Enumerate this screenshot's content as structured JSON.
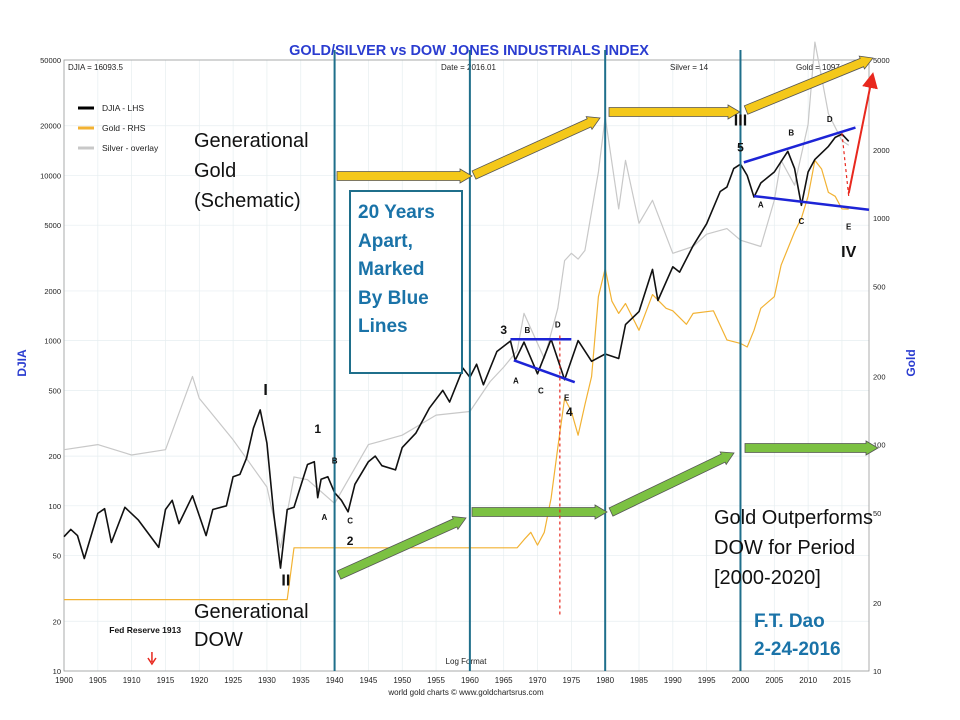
{
  "chart_data": {
    "type": "line",
    "title": "GOLD/SILVER vs DOW JONES INDUSTRIALS INDEX",
    "header_left": "DJIA = 16093.5",
    "header_date": "Date = 2016.01",
    "header_silver": "Silver = 14",
    "header_gold": "Gold = 1097",
    "ylabel_left": "DJIA",
    "ylabel_right": "Gold",
    "footer_center": "Log Format",
    "footer_credit": "world gold charts © www.goldchartsrus.com",
    "y_left_log": true,
    "ylim_left": [
      10,
      50000
    ],
    "ylim_right": [
      10,
      5000
    ],
    "xlim": [
      1900,
      2019
    ],
    "x_ticks": [
      "1900",
      "1905",
      "1910",
      "1915",
      "1920",
      "1925",
      "1930",
      "1935",
      "1940",
      "1945",
      "1950",
      "1955",
      "1960",
      "1965",
      "1970",
      "1975",
      "1980",
      "1985",
      "1990",
      "1995",
      "2000",
      "2005",
      "2010",
      "2015"
    ],
    "y_left_ticks": [
      "10",
      "20",
      "50",
      "100",
      "200",
      "500",
      "1000",
      "2000",
      "5000",
      "10000",
      "20000",
      "50000"
    ],
    "y_right_ticks": [
      "10",
      "20",
      "50",
      "100",
      "200",
      "500",
      "1000",
      "2000",
      "5000"
    ],
    "legend": [
      {
        "label": "DJIA - LHS",
        "color": "#000000"
      },
      {
        "label": "Gold - RHS",
        "color": "#f2b233"
      },
      {
        "label": "Silver - overlay",
        "color": "#c8c8c8"
      }
    ],
    "series": [
      {
        "name": "DJIA - LHS",
        "axis": "left",
        "color": "#111111",
        "points": [
          [
            1900,
            65
          ],
          [
            1901,
            72
          ],
          [
            1902,
            66
          ],
          [
            1903,
            48
          ],
          [
            1905,
            90
          ],
          [
            1906,
            96
          ],
          [
            1907,
            60
          ],
          [
            1909,
            98
          ],
          [
            1911,
            82
          ],
          [
            1914,
            56
          ],
          [
            1915,
            95
          ],
          [
            1916,
            108
          ],
          [
            1917,
            78
          ],
          [
            1919,
            115
          ],
          [
            1921,
            66
          ],
          [
            1922,
            95
          ],
          [
            1924,
            100
          ],
          [
            1925,
            150
          ],
          [
            1926,
            155
          ],
          [
            1927,
            195
          ],
          [
            1928,
            295
          ],
          [
            1929,
            381
          ],
          [
            1930,
            240
          ],
          [
            1931,
            90
          ],
          [
            1932,
            42
          ],
          [
            1933,
            95
          ],
          [
            1934,
            98
          ],
          [
            1936,
            178
          ],
          [
            1937,
            185
          ],
          [
            1937.5,
            112
          ],
          [
            1938,
            145
          ],
          [
            1939,
            150
          ],
          [
            1940,
            120
          ],
          [
            1941,
            108
          ],
          [
            1942,
            92
          ],
          [
            1943,
            135
          ],
          [
            1945,
            185
          ],
          [
            1946,
            200
          ],
          [
            1947,
            175
          ],
          [
            1949,
            165
          ],
          [
            1950,
            225
          ],
          [
            1952,
            275
          ],
          [
            1954,
            390
          ],
          [
            1956,
            500
          ],
          [
            1957,
            425
          ],
          [
            1959,
            680
          ],
          [
            1960,
            600
          ],
          [
            1961,
            720
          ],
          [
            1962,
            540
          ],
          [
            1964,
            860
          ],
          [
            1966,
            995
          ],
          [
            1966.7,
            760
          ],
          [
            1968,
            980
          ],
          [
            1970,
            630
          ],
          [
            1972,
            1020
          ],
          [
            1974,
            580
          ],
          [
            1976,
            1000
          ],
          [
            1978,
            750
          ],
          [
            1980,
            830
          ],
          [
            1982,
            780
          ],
          [
            1983,
            1250
          ],
          [
            1985,
            1500
          ],
          [
            1987,
            2700
          ],
          [
            1987.8,
            1750
          ],
          [
            1990,
            2800
          ],
          [
            1991,
            2600
          ],
          [
            1993,
            3750
          ],
          [
            1995,
            5100
          ],
          [
            1997,
            8000
          ],
          [
            1998,
            8500
          ],
          [
            1999,
            11000
          ],
          [
            2000,
            11700
          ],
          [
            2001,
            10000
          ],
          [
            2002,
            7400
          ],
          [
            2003,
            9000
          ],
          [
            2005,
            10500
          ],
          [
            2007,
            14000
          ],
          [
            2008,
            11000
          ],
          [
            2009,
            6600
          ],
          [
            2010,
            10500
          ],
          [
            2011,
            12500
          ],
          [
            2013,
            15000
          ],
          [
            2014,
            17000
          ],
          [
            2015,
            17800
          ],
          [
            2016,
            16093
          ]
        ]
      },
      {
        "name": "Gold - RHS",
        "axis": "right",
        "color": "#f2b233",
        "points": [
          [
            1900,
            20.67
          ],
          [
            1933,
            20.67
          ],
          [
            1934,
            35
          ],
          [
            1967,
            35
          ],
          [
            1968,
            38
          ],
          [
            1969,
            41
          ],
          [
            1970,
            36
          ],
          [
            1971,
            41
          ],
          [
            1972,
            58
          ],
          [
            1973,
            97
          ],
          [
            1974,
            160
          ],
          [
            1975,
            140
          ],
          [
            1976,
            110
          ],
          [
            1977,
            150
          ],
          [
            1978,
            200
          ],
          [
            1979,
            450
          ],
          [
            1980,
            600
          ],
          [
            1981,
            430
          ],
          [
            1982,
            380
          ],
          [
            1983,
            420
          ],
          [
            1985,
            320
          ],
          [
            1987,
            460
          ],
          [
            1989,
            400
          ],
          [
            1990,
            390
          ],
          [
            1992,
            340
          ],
          [
            1993,
            380
          ],
          [
            1996,
            390
          ],
          [
            1998,
            290
          ],
          [
            2000,
            280
          ],
          [
            2001,
            270
          ],
          [
            2002,
            320
          ],
          [
            2003,
            400
          ],
          [
            2005,
            450
          ],
          [
            2006,
            620
          ],
          [
            2008,
            870
          ],
          [
            2009,
            1000
          ],
          [
            2010,
            1250
          ],
          [
            2011,
            1800
          ],
          [
            2012,
            1650
          ],
          [
            2013,
            1300
          ],
          [
            2014,
            1250
          ],
          [
            2015,
            1100
          ],
          [
            2016,
            1097
          ]
        ]
      },
      {
        "name": "Silver - overlay",
        "axis": "right",
        "color": "#c8c8c8",
        "points": [
          [
            1900,
            95
          ],
          [
            1905,
            100
          ],
          [
            1910,
            90
          ],
          [
            1915,
            95
          ],
          [
            1919,
            200
          ],
          [
            1920,
            160
          ],
          [
            1925,
            105
          ],
          [
            1930,
            65
          ],
          [
            1932,
            35
          ],
          [
            1934,
            72
          ],
          [
            1936,
            70
          ],
          [
            1940,
            55
          ],
          [
            1945,
            100
          ],
          [
            1950,
            110
          ],
          [
            1955,
            135
          ],
          [
            1960,
            140
          ],
          [
            1963,
            190
          ],
          [
            1965,
            220
          ],
          [
            1967,
            260
          ],
          [
            1968,
            380
          ],
          [
            1970,
            280
          ],
          [
            1971,
            240
          ],
          [
            1973,
            400
          ],
          [
            1974,
            650
          ],
          [
            1975,
            700
          ],
          [
            1976,
            660
          ],
          [
            1977,
            720
          ],
          [
            1979,
            1600
          ],
          [
            1980,
            2800
          ],
          [
            1982,
            1100
          ],
          [
            1983,
            1800
          ],
          [
            1985,
            950
          ],
          [
            1987,
            1200
          ],
          [
            1990,
            700
          ],
          [
            1993,
            750
          ],
          [
            1995,
            850
          ],
          [
            1998,
            900
          ],
          [
            2000,
            800
          ],
          [
            2003,
            750
          ],
          [
            2005,
            1200
          ],
          [
            2006,
            1800
          ],
          [
            2008,
            1400
          ],
          [
            2010,
            2600
          ],
          [
            2011,
            6000
          ],
          [
            2012,
            4200
          ],
          [
            2013,
            2900
          ],
          [
            2015,
            2200
          ],
          [
            2016,
            2100
          ]
        ]
      }
    ],
    "annotations": [
      {
        "text": "I",
        "x": 1929.8,
        "y": 470
      },
      {
        "text": "II",
        "x": 1932.8,
        "y": 33
      },
      {
        "text": "1",
        "x": 1937.5,
        "y": 275
      },
      {
        "text": "A",
        "x": 1938.5,
        "y": 82
      },
      {
        "text": "B",
        "x": 1940,
        "y": 180
      },
      {
        "text": "C",
        "x": 1942.3,
        "y": 78
      },
      {
        "text": "2",
        "x": 1942.3,
        "y": 58
      },
      {
        "text": "3",
        "x": 1965,
        "y": 1100
      },
      {
        "text": "B",
        "x": 1968.5,
        "y": 1110
      },
      {
        "text": "D",
        "x": 1973,
        "y": 1200
      },
      {
        "text": "A",
        "x": 1966.8,
        "y": 550
      },
      {
        "text": "C",
        "x": 1970.5,
        "y": 480
      },
      {
        "text": "E",
        "x": 1974.3,
        "y": 435
      },
      {
        "text": "4",
        "x": 1974.7,
        "y": 350
      },
      {
        "text": "III",
        "x": 2000,
        "y": 20000
      },
      {
        "text": "5",
        "x": 2000,
        "y": 14000
      },
      {
        "text": "B",
        "x": 2007.5,
        "y": 17500
      },
      {
        "text": "D",
        "x": 2013.2,
        "y": 21000
      },
      {
        "text": "A",
        "x": 2003,
        "y": 6400
      },
      {
        "text": "C",
        "x": 2009,
        "y": 5100
      },
      {
        "text": "E",
        "x": 2016,
        "y": 4700
      },
      {
        "text": "IV",
        "x": 2016,
        "y": 3200
      },
      {
        "text": "Fed Reserve 1913",
        "x": 1912,
        "y": 17
      }
    ],
    "generation_lines_x": [
      1940,
      1960,
      1980,
      2000
    ],
    "grid": true
  },
  "overlays": {
    "gen_gold": [
      "Generational",
      "Gold",
      "(Schematic)"
    ],
    "gen_dow": [
      "Generational",
      "DOW"
    ],
    "note": [
      "20 Years",
      "Apart,",
      "Marked",
      "By Blue",
      "Lines"
    ],
    "outperform": [
      "Gold Outperforms",
      "DOW for Period",
      "[2000-2020]"
    ],
    "author": [
      "F.T. Dao",
      "2-24-2016"
    ]
  },
  "colors": {
    "gen_line": "#1f6f8b",
    "gold_arrow": "#f4c81a",
    "dow_arrow": "#7cc142",
    "wave_line": "#1d24d6",
    "red_arrow": "#e8281e",
    "title": "#2a3cd0"
  }
}
